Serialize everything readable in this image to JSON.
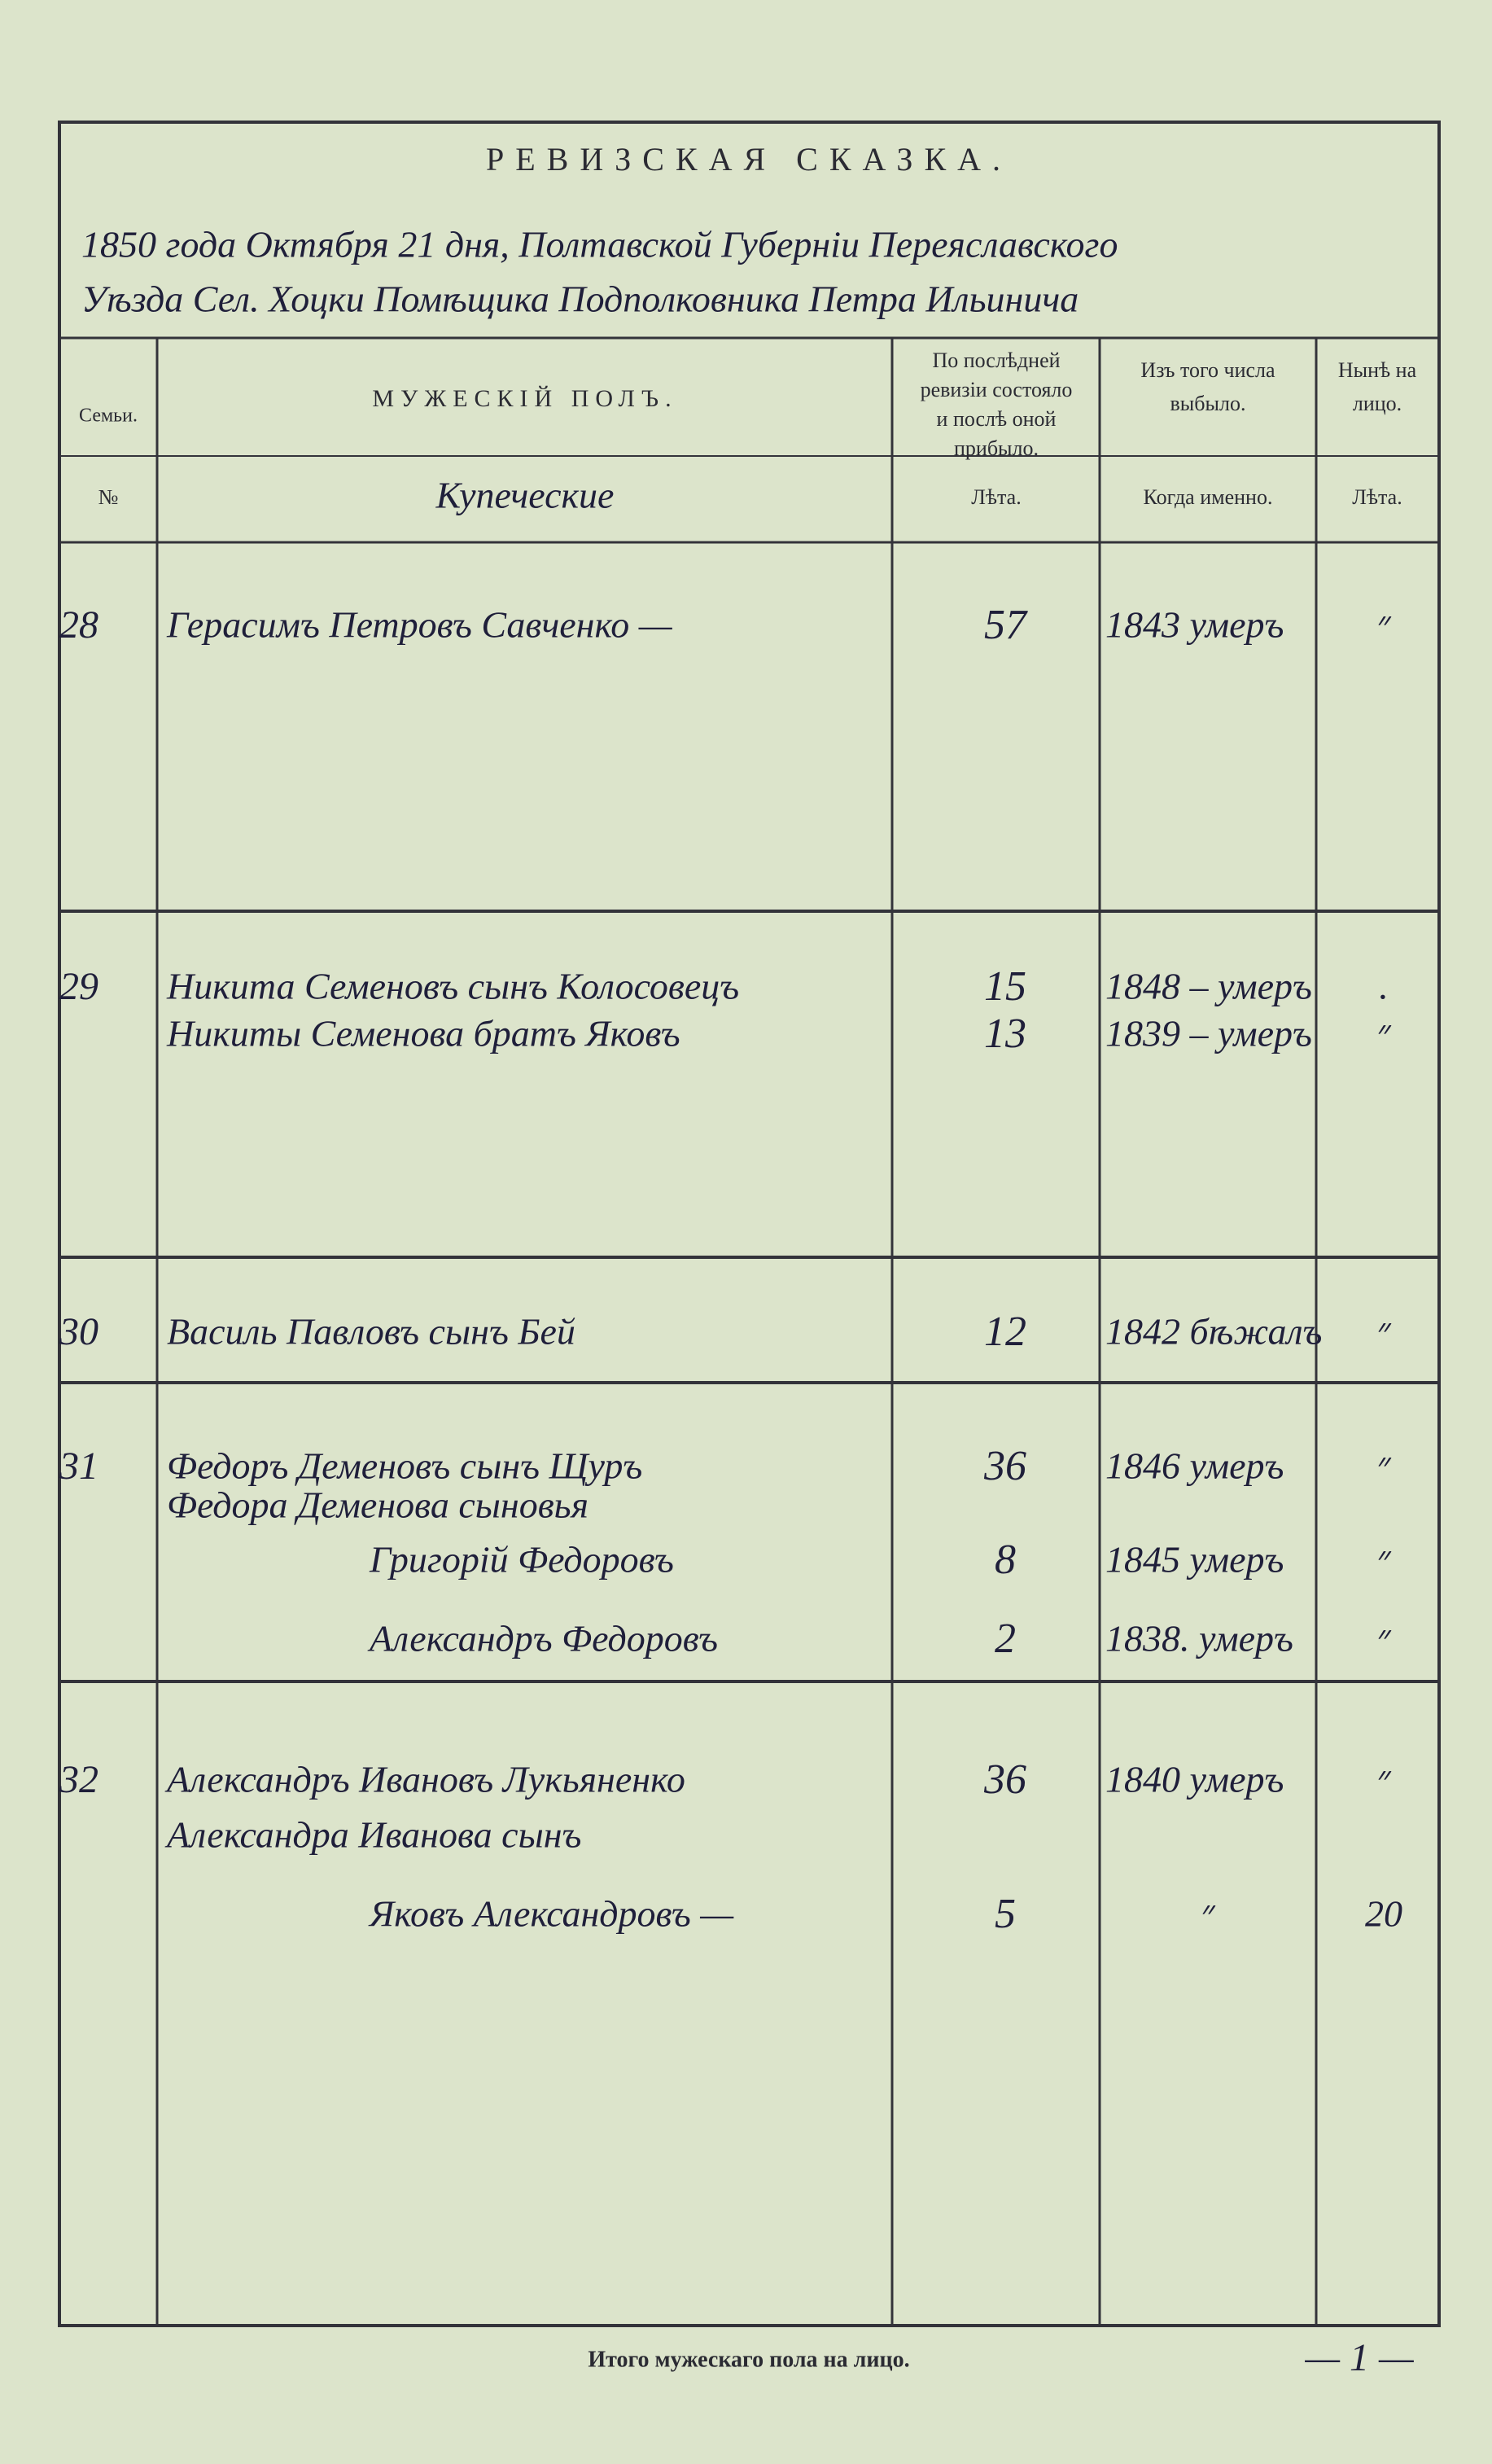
{
  "header": {
    "title": "РЕВИЗСКАЯ СКАЗКА.",
    "date_line": "1850 года Октября 21 дня, Полтавской Губерніи Переяславского",
    "district_line": "Уѣзда Сел. Хоцки Помѣщика Подполковника Петра Ильинича"
  },
  "table": {
    "columns": [
      [
        "Семьи."
      ],
      [
        "МУЖЕСКІЙ ПОЛЪ."
      ],
      [
        "По послѣдней",
        "ревизіи состояло",
        "и послѣ оной",
        "прибыло."
      ],
      [
        "Изъ того числа",
        "выбыло."
      ],
      [
        "Нынѣ на",
        "лицо."
      ]
    ],
    "subheaders": [
      "№",
      "Купеческие",
      "Лѣта.",
      "Когда именно.",
      "Лѣта."
    ],
    "families": [
      {
        "number": 28,
        "persons": [
          {
            "name": "Герасимъ Петровъ Савченко —",
            "age": 57,
            "left": "1843 умеръ",
            "present": "״"
          }
        ]
      },
      {
        "number": 29,
        "persons": [
          {
            "name": "Никита Семеновъ сынъ Колосовецъ",
            "age": 15,
            "left": "1848 – умеръ",
            "present": "."
          },
          {
            "name": "Никиты Семенова братъ Яковъ",
            "age": 13,
            "left": "1839 – умеръ",
            "present": "״"
          }
        ]
      },
      {
        "number": 30,
        "persons": [
          {
            "name": "Василь Павловъ сынъ Бей",
            "age": 12,
            "left": "1842 бѣжалъ",
            "present": "״"
          }
        ]
      },
      {
        "number": 31,
        "persons": [
          {
            "name": "Федоръ Деменовъ сынъ Щуръ",
            "age": 36,
            "left": "1846 умеръ",
            "present": "״"
          },
          {
            "name": "Федора Деменова сыновья"
          },
          {
            "name": "Григорій Федоровъ",
            "age": 8,
            "left": "1845 умеръ",
            "present": "״"
          },
          {
            "name": "Александръ Федоровъ",
            "age": 2,
            "left": "1838. умеръ",
            "present": "״"
          }
        ]
      },
      {
        "number": 32,
        "persons": [
          {
            "name": "Александръ Ивановъ Лукьяненко",
            "age": 36,
            "left": "1840 умеръ",
            "present": "״"
          },
          {
            "name": "Александра Иванова сынъ"
          },
          {
            "name": "Яковъ Александровъ —",
            "age": 5,
            "left": "״",
            "present": 20
          }
        ]
      }
    ]
  },
  "footer": {
    "label": "Итого мужескаго пола на лицо.",
    "total": "— 1 —"
  }
}
